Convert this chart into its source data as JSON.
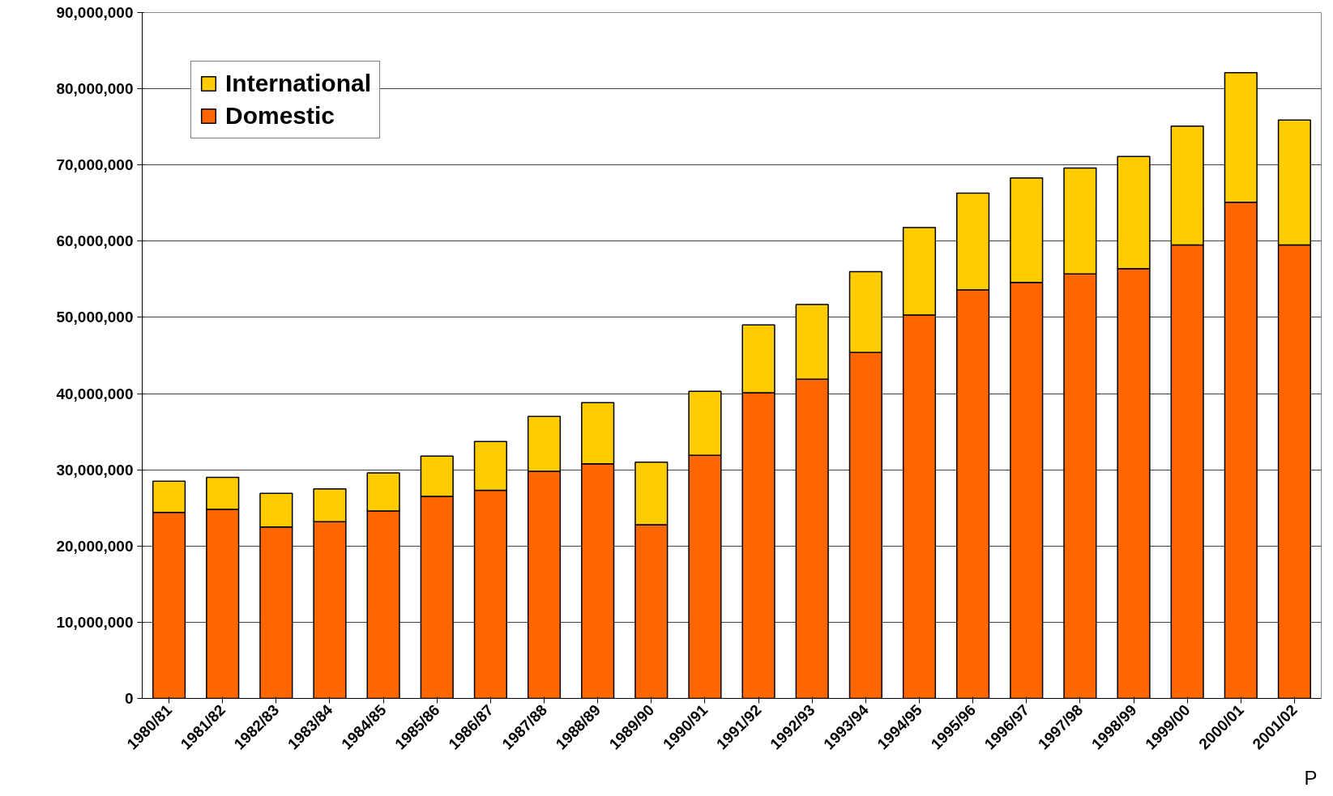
{
  "chart_data": {
    "type": "bar",
    "stacked": true,
    "categories": [
      "1980/81",
      "1981/82",
      "1982/83",
      "1983/84",
      "1984/85",
      "1985/86",
      "1986/87",
      "1987/88",
      "1988/89",
      "1989/90",
      "1990/91",
      "1991/92",
      "1992/93",
      "1993/94",
      "1994/95",
      "1995/96",
      "1996/97",
      "1997/98",
      "1998/99",
      "1999/00",
      "2000/01",
      "2001/02"
    ],
    "series": [
      {
        "name": "Domestic",
        "color": "#ff6600",
        "values": [
          24400000,
          24800000,
          22500000,
          23200000,
          24600000,
          26500000,
          27300000,
          29800000,
          30800000,
          22800000,
          31900000,
          40100000,
          41900000,
          45400000,
          50300000,
          53600000,
          54600000,
          55700000,
          56400000,
          59500000,
          65100000,
          59500000
        ]
      },
      {
        "name": "International",
        "color": "#ffcc00",
        "values": [
          4100000,
          4200000,
          4400000,
          4300000,
          5000000,
          5300000,
          6400000,
          7200000,
          8000000,
          8200000,
          8400000,
          8900000,
          9800000,
          10600000,
          11500000,
          12700000,
          13700000,
          13900000,
          14700000,
          15600000,
          17000000,
          16400000
        ]
      }
    ],
    "ylim": [
      0,
      90000000
    ],
    "yticks": [
      {
        "value": 0,
        "label": "0"
      },
      {
        "value": 10000000,
        "label": "10,000,000"
      },
      {
        "value": 20000000,
        "label": "20,000,000"
      },
      {
        "value": 30000000,
        "label": "30,000,000"
      },
      {
        "value": 40000000,
        "label": "40,000,000"
      },
      {
        "value": 50000000,
        "label": "50,000,000"
      },
      {
        "value": 60000000,
        "label": "60,000,000"
      },
      {
        "value": 70000000,
        "label": "70,000,000"
      },
      {
        "value": 80000000,
        "label": "80,000,000"
      },
      {
        "value": 90000000,
        "label": "90,000,000"
      }
    ],
    "grid": "y",
    "legend": "top left",
    "annotations": [
      "P"
    ]
  }
}
